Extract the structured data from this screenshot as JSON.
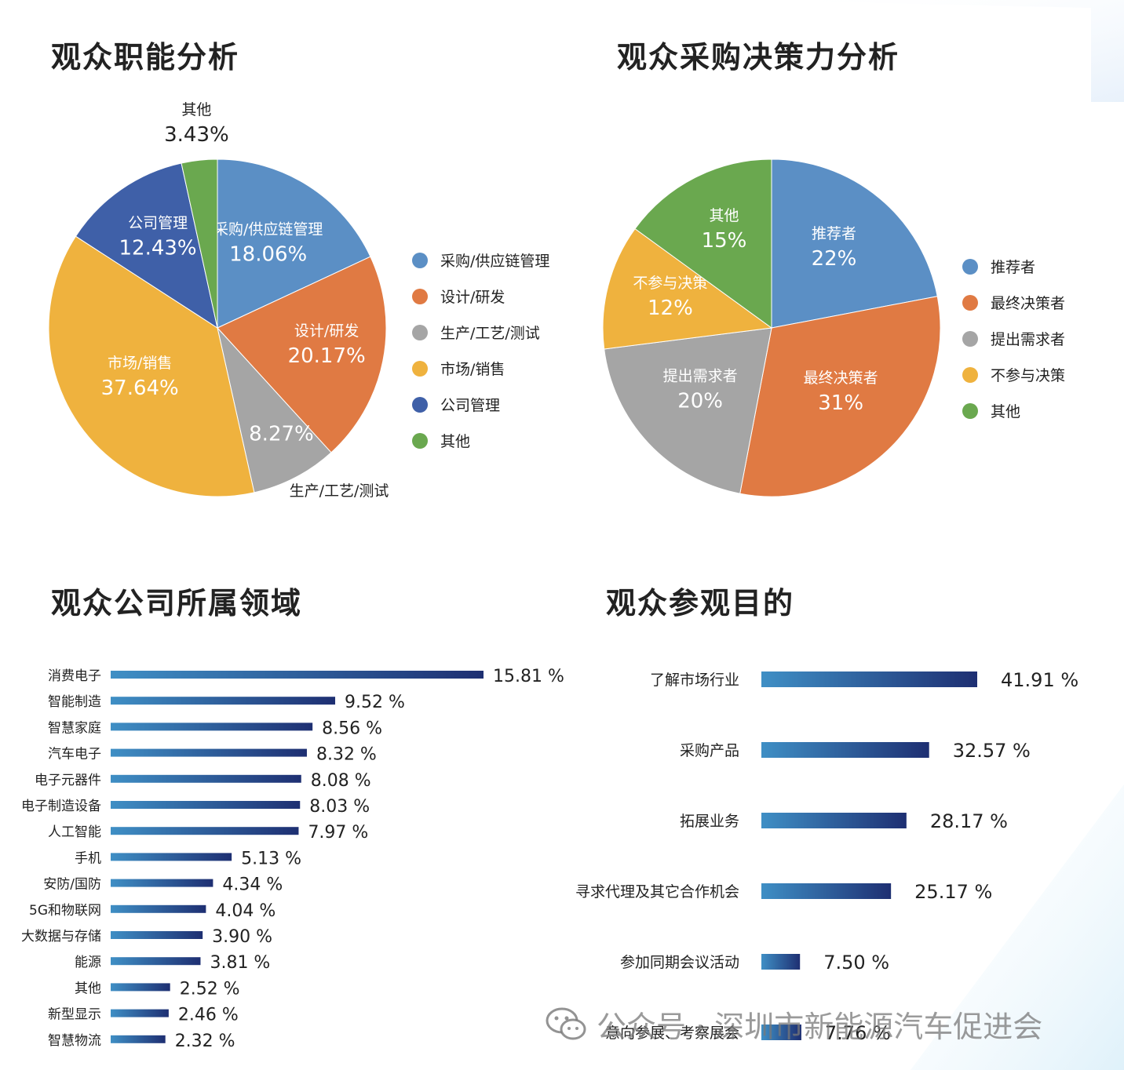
{
  "titles": {
    "function": "观众职能分析",
    "decision": "观众采购决策力分析",
    "industry": "观众公司所属领域",
    "purpose": "观众参观目的"
  },
  "watermark": {
    "text": "公众号 · 深圳市新能源汽车促进会",
    "icon": "wechat-icon"
  },
  "chart_data": [
    {
      "type": "pie",
      "title": "观众职能分析",
      "slices": [
        {
          "label": "采购/供应链管理",
          "value": 18.06,
          "display": "18.06%",
          "color": "#5b8fc5"
        },
        {
          "label": "设计/研发",
          "value": 20.17,
          "display": "20.17%",
          "color": "#e07a43"
        },
        {
          "label": "生产/工艺/测试",
          "value": 8.27,
          "display": "8.27%",
          "color": "#a5a5a5"
        },
        {
          "label": "市场/销售",
          "value": 37.64,
          "display": "37.64%",
          "color": "#efb23e"
        },
        {
          "label": "公司管理",
          "value": 12.43,
          "display": "12.43%",
          "color": "#3f60a8"
        },
        {
          "label": "其他",
          "value": 3.43,
          "display": "3.43%",
          "color": "#6aa84f"
        }
      ],
      "legend_position": "right"
    },
    {
      "type": "pie",
      "title": "观众采购决策力分析",
      "slices": [
        {
          "label": "推荐者",
          "value": 22,
          "display": "22%",
          "color": "#5b8fc5"
        },
        {
          "label": "最终决策者",
          "value": 31,
          "display": "31%",
          "color": "#e07a43"
        },
        {
          "label": "提出需求者",
          "value": 20,
          "display": "20%",
          "color": "#a5a5a5"
        },
        {
          "label": "不参与决策",
          "value": 12,
          "display": "12%",
          "color": "#efb23e"
        },
        {
          "label": "其他",
          "value": 15,
          "display": "15%",
          "color": "#6aa84f"
        }
      ],
      "legend_position": "right"
    },
    {
      "type": "bar",
      "orientation": "horizontal",
      "title": "观众公司所属领域",
      "categories": [
        "消费电子",
        "智能制造",
        "智慧家庭",
        "汽车电子",
        "电子元器件",
        "电子制造设备",
        "人工智能",
        "手机",
        "安防/国防",
        "5G和物联网",
        "大数据与存储",
        "能源",
        "其他",
        "新型显示",
        "智慧物流"
      ],
      "values": [
        15.81,
        9.52,
        8.56,
        8.32,
        8.08,
        8.03,
        7.97,
        5.13,
        4.34,
        4.04,
        3.9,
        3.81,
        2.52,
        2.46,
        2.32
      ],
      "labels": [
        "15.81 %",
        "9.52 %",
        "8.56 %",
        "8.32 %",
        "8.08 %",
        "8.03 %",
        "7.97 %",
        "5.13 %",
        "4.34 %",
        "4.04 %",
        "3.90 %",
        "3.81 %",
        "2.52 %",
        "2.46 %",
        "2.32 %"
      ]
    },
    {
      "type": "bar",
      "orientation": "horizontal",
      "title": "观众参观目的",
      "categories": [
        "了解市场行业",
        "采购产品",
        "拓展业务",
        "寻求代理及其它合作机会",
        "参加同期会议活动",
        "意向参展、考察展会"
      ],
      "values": [
        41.91,
        32.57,
        28.17,
        25.17,
        7.5,
        7.76
      ],
      "labels": [
        "41.91 %",
        "32.57 %",
        "28.17 %",
        "25.17 %",
        "7.50 %",
        "7.76 %"
      ]
    }
  ],
  "colors": {
    "bar_start": "#3f8fc5",
    "bar_end": "#1e2f72",
    "title": "#222222"
  }
}
